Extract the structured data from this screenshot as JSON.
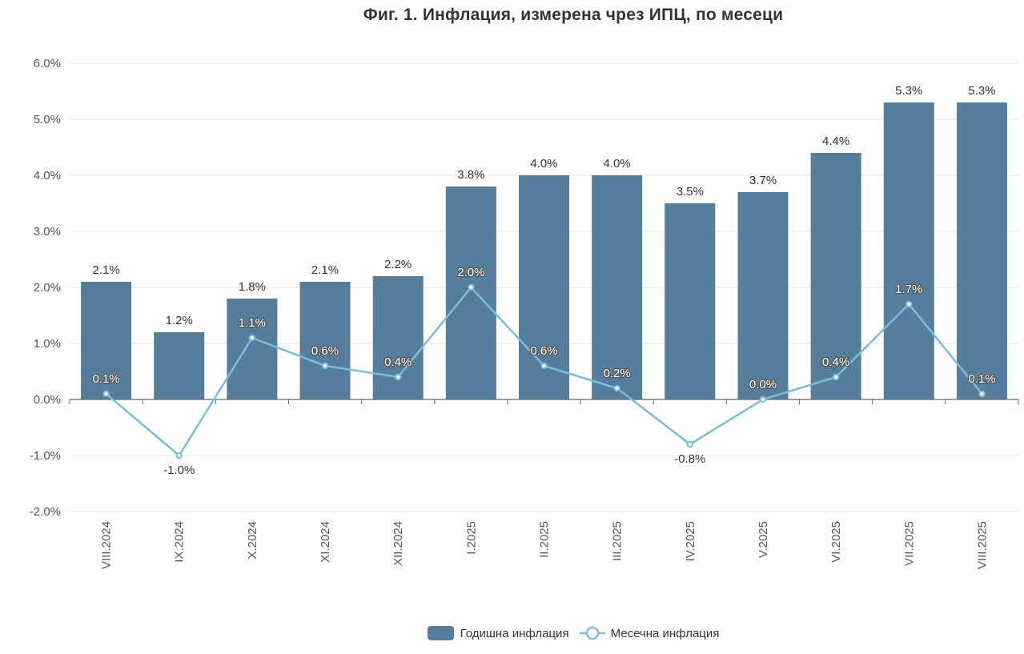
{
  "title": "Фиг. 1. Инфлация, измерена чрез ИПЦ, по месеци",
  "colors": {
    "bar": "#547e9b",
    "line": "#78bedb",
    "grid": "#e3e6ea",
    "axis": "#666666"
  },
  "legend": {
    "bar_label": "Годишна инфлация",
    "line_label": "Месечна инфлация",
    "position": "bottom-center"
  },
  "chart_data": {
    "type": "bar",
    "title": "Фиг. 1. Инфлация, измерена чрез ИПЦ, по месеци",
    "categories": [
      "VIII.2024",
      "IX.2024",
      "X.2024",
      "XI.2024",
      "XII.2024",
      "I.2025",
      "II.2025",
      "III.2025",
      "IV.2025",
      "V.2025",
      "VI.2025",
      "VII.2025",
      "VIII.2025"
    ],
    "ylim": [
      -2.0,
      6.0
    ],
    "yticks": [
      -2.0,
      -1.0,
      0.0,
      1.0,
      2.0,
      3.0,
      4.0,
      5.0,
      6.0
    ],
    "ytick_labels": [
      "-2.0%",
      "-1.0%",
      "0.0%",
      "1.0%",
      "2.0%",
      "3.0%",
      "4.0%",
      "5.0%",
      "6.0%"
    ],
    "grid": true,
    "series": [
      {
        "name": "Годишна инфлация",
        "type": "bar",
        "values": [
          2.1,
          1.2,
          1.8,
          2.1,
          2.2,
          3.8,
          4.0,
          4.0,
          3.5,
          3.7,
          4.4,
          5.3,
          5.3
        ],
        "labels": [
          "2.1%",
          "1.2%",
          "1.8%",
          "2.1%",
          "2.2%",
          "3.8%",
          "4.0%",
          "4.0%",
          "3.5%",
          "3.7%",
          "4.4%",
          "5.3%",
          "5.3%"
        ]
      },
      {
        "name": "Месечна инфлация",
        "type": "line",
        "values": [
          0.1,
          -1.0,
          1.1,
          0.6,
          0.4,
          2.0,
          0.6,
          0.2,
          -0.8,
          0.0,
          0.4,
          1.7,
          0.1
        ],
        "labels": [
          "0.1%",
          "-1.0%",
          "1.1%",
          "0.6%",
          "0.4%",
          "2.0%",
          "0.6%",
          "0.2%",
          "-0.8%",
          "0.0%",
          "0.4%",
          "1.7%",
          "0.1%"
        ]
      }
    ]
  }
}
